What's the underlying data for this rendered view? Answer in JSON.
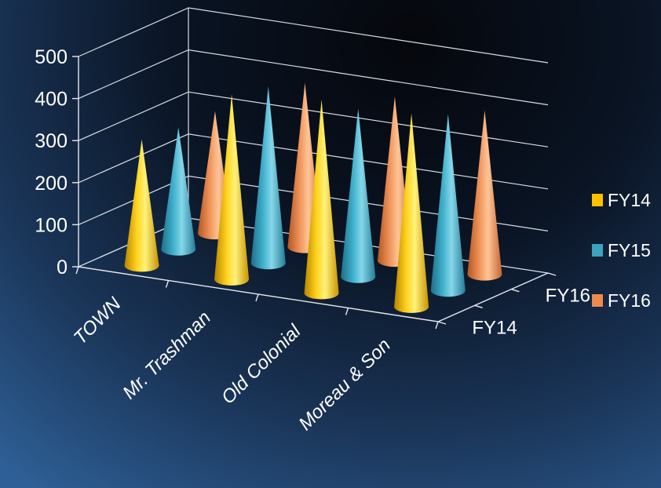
{
  "chart_data": {
    "type": "bar",
    "subtype": "3d-cone",
    "title": "",
    "xlabel": "",
    "ylabel": "",
    "categories": [
      "TOWN",
      "Mr. Trashman",
      "Old Colonial",
      "Moreau & Son"
    ],
    "depth_labels": [
      "FY14",
      "FY16"
    ],
    "series": [
      {
        "name": "FY14",
        "color": "#ffc000",
        "values": [
          300,
          440,
          460,
          460
        ]
      },
      {
        "name": "FY15",
        "color": "#3aa4c0",
        "values": [
          290,
          420,
          400,
          420
        ]
      },
      {
        "name": "FY16",
        "color": "#ed8a4e",
        "values": [
          290,
          390,
          390,
          390
        ]
      }
    ],
    "ylim": [
      0,
      500
    ],
    "yticks": [
      0,
      100,
      200,
      300,
      400,
      500
    ],
    "grid": true,
    "legend_position": "right"
  }
}
